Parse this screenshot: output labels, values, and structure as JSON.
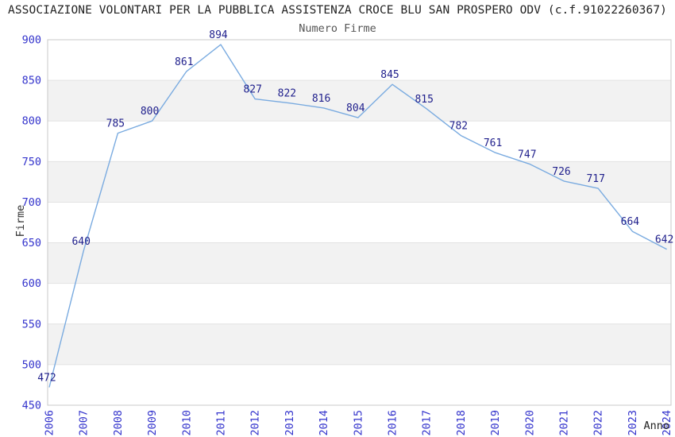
{
  "header": {
    "title": "ASSOCIAZIONE VOLONTARI PER LA PUBBLICA ASSISTENZA CROCE BLU SAN PROSPERO ODV (c.f.91022260367)",
    "subtitle": "Numero Firme"
  },
  "chart_data": {
    "type": "line",
    "title": "Numero Firme",
    "xlabel": "Anno",
    "ylabel": "Firme",
    "categories": [
      "2006",
      "2007",
      "2008",
      "2009",
      "2010",
      "2011",
      "2012",
      "2013",
      "2014",
      "2015",
      "2016",
      "2017",
      "2018",
      "2019",
      "2020",
      "2021",
      "2022",
      "2023",
      "2024"
    ],
    "values": [
      472,
      640,
      785,
      800,
      861,
      894,
      827,
      822,
      816,
      804,
      845,
      815,
      782,
      761,
      747,
      726,
      717,
      664,
      642
    ],
    "ylim": [
      450,
      900
    ],
    "ytick_step": 50,
    "grid": "horizontal",
    "banded_rows": true,
    "legend_position": "none",
    "colors": {
      "line": "#7aabe0",
      "data_label": "#1f1f8c",
      "tick_label": "#3333cc",
      "band": "#f2f2f2",
      "grid_line": "#e2e2e2",
      "plot_border": "#c8c8c8",
      "title_text": "#222222",
      "axis_title": "#333333"
    }
  }
}
